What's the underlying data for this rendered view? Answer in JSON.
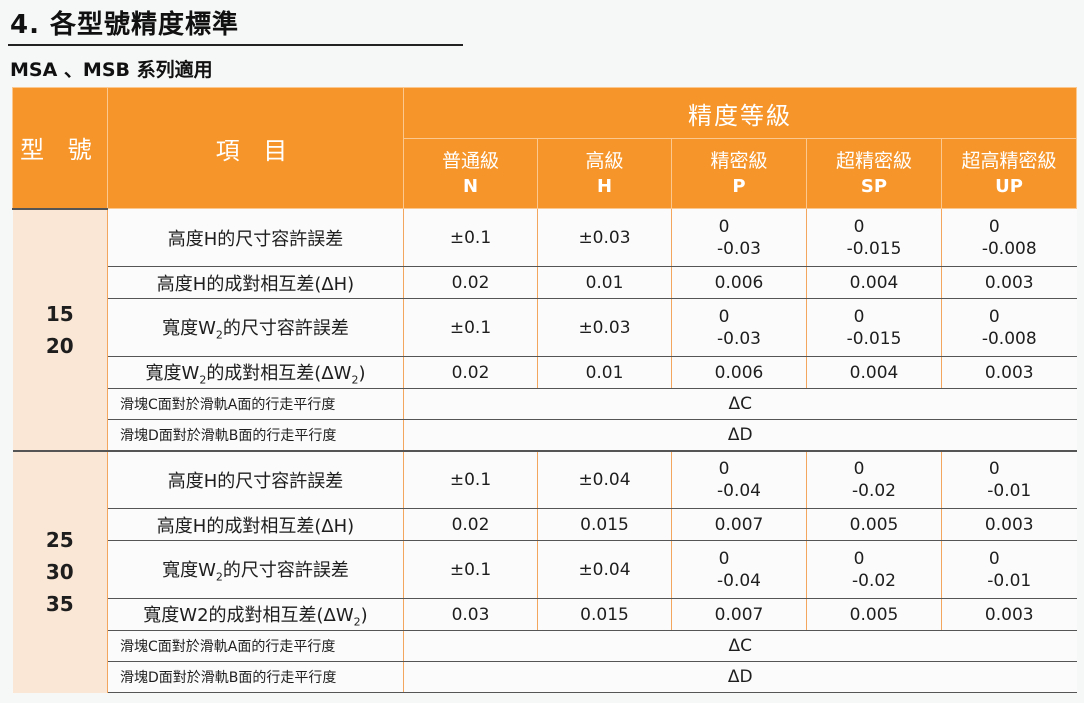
{
  "heading": "4. 各型號精度標準",
  "subheading": "MSA 、MSB 系列適用",
  "table": {
    "header": {
      "model": "型 號",
      "item": "項 目",
      "grade": "精度等級",
      "levels": [
        {
          "name": "普通級",
          "code": "N"
        },
        {
          "name": "高級",
          "code": "H"
        },
        {
          "name": "精密級",
          "code": "P"
        },
        {
          "name": "超精密級",
          "code": "SP"
        },
        {
          "name": "超高精密級",
          "code": "UP"
        }
      ]
    },
    "groups": [
      {
        "models": [
          "15",
          "20"
        ],
        "rows": [
          {
            "item": "高度H的尺寸容許誤差",
            "values": [
              [
                "±0.1"
              ],
              [
                "±0.03"
              ],
              [
                "0",
                "-0.03"
              ],
              [
                "0",
                "-0.015"
              ],
              [
                "0",
                "-0.008"
              ]
            ]
          },
          {
            "item": "高度H的成對相互差(ΔH)",
            "values": [
              [
                "0.02"
              ],
              [
                "0.01"
              ],
              [
                "0.006"
              ],
              [
                "0.004"
              ],
              [
                "0.003"
              ]
            ]
          },
          {
            "item_pre": "寬度W",
            "item_sub": "2",
            "item_post": "的尺寸容許誤差",
            "values": [
              [
                "±0.1"
              ],
              [
                "±0.03"
              ],
              [
                "0",
                "-0.03"
              ],
              [
                "0",
                "-0.015"
              ],
              [
                "0",
                "-0.008"
              ]
            ]
          },
          {
            "item_pre": "寬度W",
            "item_sub": "2",
            "item_post": "的成對相互差(ΔW",
            "item_sub2": "2",
            "item_post2": ")",
            "values": [
              [
                "0.02"
              ],
              [
                "0.01"
              ],
              [
                "0.006"
              ],
              [
                "0.004"
              ],
              [
                "0.003"
              ]
            ]
          }
        ],
        "parallel": [
          {
            "item": "滑塊C面對於滑軌A面的行走平行度",
            "value": "ΔC"
          },
          {
            "item": "滑塊D面對於滑軌B面的行走平行度",
            "value": "ΔD"
          }
        ]
      },
      {
        "models": [
          "25",
          "30",
          "35"
        ],
        "rows": [
          {
            "item": "高度H的尺寸容許誤差",
            "values": [
              [
                "±0.1"
              ],
              [
                "±0.04"
              ],
              [
                "0",
                "-0.04"
              ],
              [
                "0",
                "-0.02"
              ],
              [
                "0",
                "-0.01"
              ]
            ]
          },
          {
            "item": "高度H的成對相互差(ΔH)",
            "values": [
              [
                "0.02"
              ],
              [
                "0.015"
              ],
              [
                "0.007"
              ],
              [
                "0.005"
              ],
              [
                "0.003"
              ]
            ]
          },
          {
            "item_pre": "寬度W",
            "item_sub": "2",
            "item_post": "的尺寸容許誤差",
            "values": [
              [
                "±0.1"
              ],
              [
                "±0.04"
              ],
              [
                "0",
                "-0.04"
              ],
              [
                "0",
                "-0.02"
              ],
              [
                "0",
                "-0.01"
              ]
            ]
          },
          {
            "item_pre": "寬度W2的成對相互差(ΔW",
            "item_sub": "2",
            "item_post": ")",
            "values": [
              [
                "0.03"
              ],
              [
                "0.015"
              ],
              [
                "0.007"
              ],
              [
                "0.005"
              ],
              [
                "0.003"
              ]
            ]
          }
        ],
        "parallel": [
          {
            "item": "滑塊C面對於滑軌A面的行走平行度",
            "value": "ΔC"
          },
          {
            "item": "滑塊D面對於滑軌B面的行走平行度",
            "value": "ΔD"
          }
        ]
      }
    ]
  },
  "colors": {
    "header_bg": "#f6962a",
    "header_text": "#ffffff",
    "model_bg": "#fbe7d6"
  }
}
